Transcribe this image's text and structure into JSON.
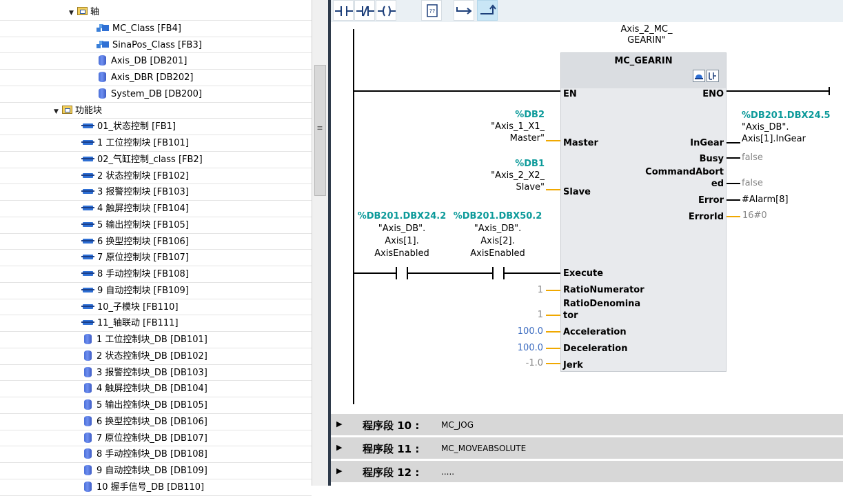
{
  "tree": {
    "rows": [
      {
        "indent": 100,
        "expander": "▼",
        "icon": "folder",
        "label": "轴"
      },
      {
        "indent": 140,
        "icon": "class",
        "label": "MC_Class [FB4]"
      },
      {
        "indent": 140,
        "icon": "class",
        "label": "SinaPos_Class [FB3]"
      },
      {
        "indent": 143,
        "icon": "db",
        "label": "Axis_DB [DB201]"
      },
      {
        "indent": 143,
        "icon": "db",
        "label": "Axis_DBR [DB202]"
      },
      {
        "indent": 143,
        "icon": "db",
        "label": "System_DB [DB200]"
      },
      {
        "indent": 78,
        "expander": "▼",
        "icon": "folder",
        "label": "功能块"
      },
      {
        "indent": 118,
        "icon": "fb",
        "label": "01_状态控制 [FB1]"
      },
      {
        "indent": 118,
        "icon": "fb",
        "label": "1 工位控制块 [FB101]"
      },
      {
        "indent": 118,
        "icon": "fb",
        "label": "02_气缸控制_class [FB2]"
      },
      {
        "indent": 118,
        "icon": "fb",
        "label": "2 状态控制块 [FB102]"
      },
      {
        "indent": 118,
        "icon": "fb",
        "label": "3 报警控制块 [FB103]"
      },
      {
        "indent": 118,
        "icon": "fb",
        "label": "4 触屏控制块 [FB104]"
      },
      {
        "indent": 118,
        "icon": "fb",
        "label": "5 输出控制块 [FB105]"
      },
      {
        "indent": 118,
        "icon": "fb",
        "label": "6 换型控制块 [FB106]"
      },
      {
        "indent": 118,
        "icon": "fb",
        "label": "7 原位控制块 [FB107]"
      },
      {
        "indent": 118,
        "icon": "fb",
        "label": "8 手动控制块 [FB108]"
      },
      {
        "indent": 118,
        "icon": "fb",
        "label": "9 自动控制块 [FB109]"
      },
      {
        "indent": 118,
        "icon": "fb",
        "label": "10_子模块 [FB110]"
      },
      {
        "indent": 118,
        "icon": "fb",
        "label": "11_轴联动 [FB111]"
      },
      {
        "indent": 122,
        "icon": "db",
        "label": "1 工位控制块_DB [DB101]"
      },
      {
        "indent": 122,
        "icon": "db",
        "label": "2 状态控制块_DB [DB102]"
      },
      {
        "indent": 122,
        "icon": "db",
        "label": "3 报警控制块_DB [DB103]"
      },
      {
        "indent": 122,
        "icon": "db",
        "label": "4 触屏控制块_DB [DB104]"
      },
      {
        "indent": 122,
        "icon": "db",
        "label": "5 输出控制块_DB [DB105]"
      },
      {
        "indent": 122,
        "icon": "db",
        "label": "6 换型控制块_DB [DB106]"
      },
      {
        "indent": 122,
        "icon": "db",
        "label": "7 原位控制块_DB [DB107]"
      },
      {
        "indent": 122,
        "icon": "db",
        "label": "8 手动控制块_DB [DB108]"
      },
      {
        "indent": 122,
        "icon": "db",
        "label": "9 自动控制块_DB [DB109]"
      },
      {
        "indent": 122,
        "icon": "db",
        "label": "10 握手信号_DB [DB110]"
      }
    ]
  },
  "toolbar": {
    "buttons": [
      {
        "name": "no-contact-icon"
      },
      {
        "name": "nc-contact-icon"
      },
      {
        "name": "coil-icon"
      },
      {
        "name": "empty-box-icon"
      },
      {
        "name": "open-branch-icon"
      },
      {
        "name": "close-branch-icon"
      }
    ]
  },
  "network": {
    "instance_line1": "Axis_2_MC_",
    "instance_line2": "GEARIN\"",
    "block_type": "MC_GEARIN",
    "en": "EN",
    "eno": "ENO",
    "master_addr": "%DB2",
    "master_line1": "\"Axis_1_X1_",
    "master_line2": "Master\"",
    "slave_addr": "%DB1",
    "slave_line1": "\"Axis_2_X2_",
    "slave_line2": "Slave\"",
    "c1_addr": "%DB201.DBX24.2",
    "c1_line1": "\"Axis_DB\".",
    "c1_line2": "Axis[1].",
    "c1_line3": "AxisEnabled",
    "c2_addr": "%DB201.DBX50.2",
    "c2_line1": "\"Axis_DB\".",
    "c2_line2": "Axis[2].",
    "c2_line3": "AxisEnabled",
    "inputs": {
      "master": "Master",
      "slave": "Slave",
      "execute": "Execute",
      "ratio_num": "RatioNumerator",
      "ratio_den1": "RatioDenomina",
      "ratio_den2": "tor",
      "accel": "Acceleration",
      "decel": "Deceleration",
      "jerk": "Jerk"
    },
    "input_values": {
      "ratio_num": "1",
      "ratio_den": "1",
      "accel": "100.0",
      "decel": "100.0",
      "jerk": "-1.0"
    },
    "outputs": {
      "ingear": "InGear",
      "busy": "Busy",
      "cmd1": "CommandAbort",
      "cmd2": "ed",
      "error": "Error",
      "errorid": "ErrorId"
    },
    "output_values": {
      "ingear_addr": "%DB201.DBX24.5",
      "ingear_line1": "\"Axis_DB\".",
      "ingear_line2": "Axis[1].InGear",
      "busy": "false",
      "cmd": "false",
      "error": "#Alarm[8]",
      "errorid": "16#0"
    }
  },
  "networks": [
    {
      "label": "程序段 10 :",
      "name": "MC_JOG"
    },
    {
      "label": "程序段 11 :",
      "name": "MC_MOVEABSOLUTE"
    },
    {
      "label": "程序段 12 :",
      "name": "....."
    }
  ]
}
